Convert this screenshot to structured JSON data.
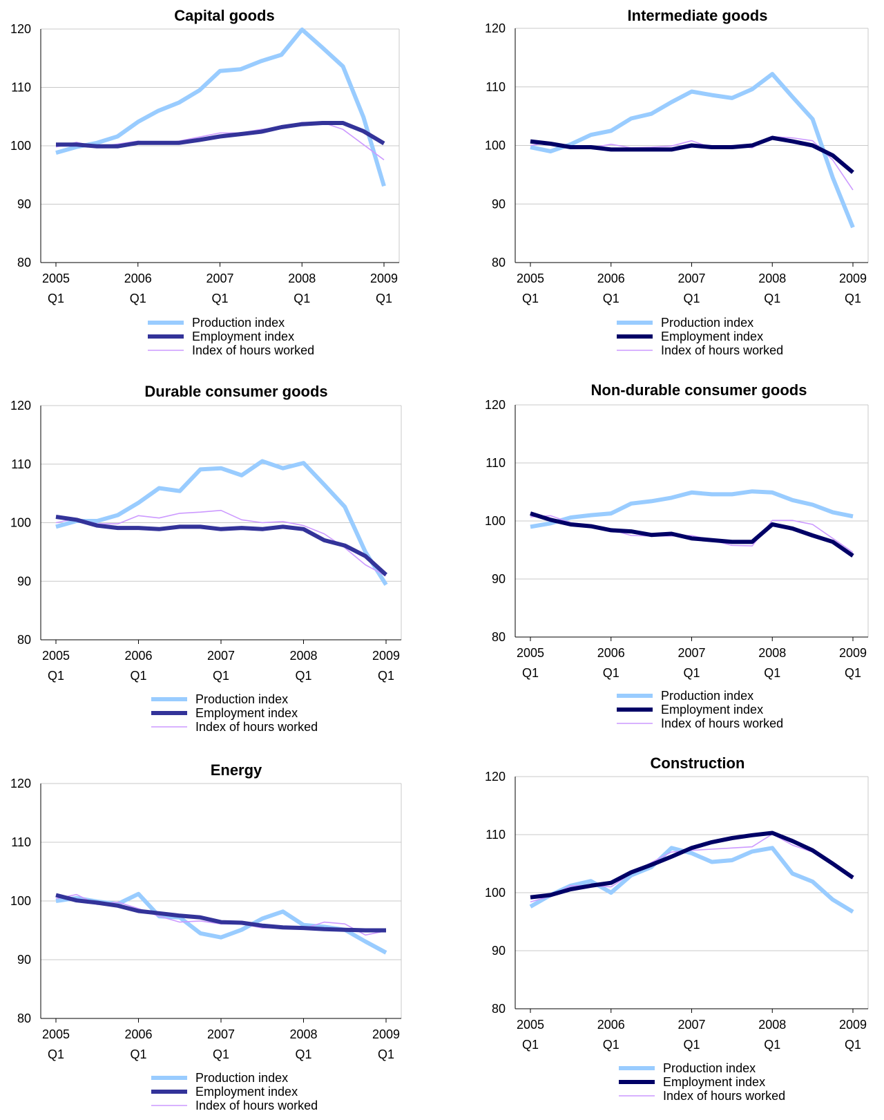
{
  "chart_data": [
    {
      "type": "line",
      "title": "Capital goods",
      "ylim": [
        80,
        120
      ],
      "yticks": [
        "80",
        "90",
        "100",
        "110",
        "120"
      ],
      "xticks": [
        {
          "year": "2005",
          "q": "Q1"
        },
        {
          "year": "2006",
          "q": "Q1"
        },
        {
          "year": "2007",
          "q": "Q1"
        },
        {
          "year": "2008",
          "q": "Q1"
        },
        {
          "year": "2009",
          "q": "Q1"
        }
      ],
      "x": [
        "2005Q1",
        "2005Q2",
        "2005Q3",
        "2005Q4",
        "2006Q1",
        "2006Q2",
        "2006Q3",
        "2006Q4",
        "2007Q1",
        "2007Q2",
        "2007Q3",
        "2007Q4",
        "2008Q1",
        "2008Q2",
        "2008Q3",
        "2008Q4",
        "2009Q1"
      ],
      "series": [
        {
          "name": "Production index",
          "color": "#99ccff",
          "values": [
            98.8,
            99.8,
            100.5,
            101.6,
            104.1,
            106.0,
            107.4,
            109.5,
            112.8,
            113.1,
            114.5,
            115.6,
            119.9,
            116.8,
            113.6,
            104.9,
            93.1
          ]
        },
        {
          "name": "Employment index",
          "color": "#333399",
          "values": [
            100.2,
            100.2,
            99.9,
            99.9,
            100.5,
            100.5,
            100.5,
            101.0,
            101.6,
            102.0,
            102.4,
            103.2,
            103.7,
            103.9,
            103.9,
            102.5,
            100.4
          ]
        },
        {
          "name": "Index of hours worked",
          "color": "#cc99ff",
          "values": [
            99.8,
            100.6,
            99.8,
            100.3,
            100.8,
            100.3,
            100.8,
            101.5,
            102.2,
            102.2,
            102.8,
            103.1,
            104.0,
            104.0,
            102.8,
            100.2,
            97.6
          ]
        }
      ]
    },
    {
      "type": "line",
      "title": "Intermediate goods",
      "ylim": [
        80,
        120
      ],
      "yticks": [
        "80",
        "90",
        "100",
        "110",
        "120"
      ],
      "xticks": [
        {
          "year": "2005",
          "q": "Q1"
        },
        {
          "year": "2006",
          "q": "Q1"
        },
        {
          "year": "2007",
          "q": "Q1"
        },
        {
          "year": "2008",
          "q": "Q1"
        },
        {
          "year": "2009",
          "q": "Q1"
        }
      ],
      "x": [
        "2005Q1",
        "2005Q2",
        "2005Q3",
        "2005Q4",
        "2006Q1",
        "2006Q2",
        "2006Q3",
        "2006Q4",
        "2007Q1",
        "2007Q2",
        "2007Q3",
        "2007Q4",
        "2008Q1",
        "2008Q2",
        "2008Q3",
        "2008Q4",
        "2009Q1"
      ],
      "series": [
        {
          "name": "Production index",
          "color": "#99ccff",
          "values": [
            99.7,
            99.0,
            100.2,
            101.8,
            102.5,
            104.6,
            105.4,
            107.4,
            109.2,
            108.6,
            108.1,
            109.6,
            112.2,
            108.3,
            104.5,
            94.5,
            86.0
          ]
        },
        {
          "name": "Employment index",
          "color": "#000066",
          "values": [
            100.7,
            100.3,
            99.7,
            99.7,
            99.3,
            99.3,
            99.3,
            99.3,
            100.0,
            99.7,
            99.7,
            100.0,
            101.3,
            100.7,
            100.0,
            98.3,
            95.4
          ]
        },
        {
          "name": "Index of hours worked",
          "color": "#cc99ff",
          "values": [
            100.0,
            100.5,
            99.7,
            99.6,
            100.2,
            99.6,
            99.7,
            99.9,
            100.8,
            99.6,
            100.0,
            99.6,
            101.5,
            101.3,
            100.8,
            97.5,
            92.4
          ]
        }
      ]
    },
    {
      "type": "line",
      "title": "Durable consumer goods",
      "ylim": [
        80,
        120
      ],
      "yticks": [
        "80",
        "90",
        "100",
        "110",
        "120"
      ],
      "xticks": [
        {
          "year": "2005",
          "q": "Q1"
        },
        {
          "year": "2006",
          "q": "Q1"
        },
        {
          "year": "2007",
          "q": "Q1"
        },
        {
          "year": "2008",
          "q": "Q1"
        },
        {
          "year": "2009",
          "q": "Q1"
        }
      ],
      "x": [
        "2005Q1",
        "2005Q2",
        "2005Q3",
        "2005Q4",
        "2006Q1",
        "2006Q2",
        "2006Q3",
        "2006Q4",
        "2007Q1",
        "2007Q2",
        "2007Q3",
        "2007Q4",
        "2008Q1",
        "2008Q2",
        "2008Q3",
        "2008Q4",
        "2009Q1"
      ],
      "series": [
        {
          "name": "Production index",
          "color": "#99ccff",
          "values": [
            99.3,
            100.3,
            100.3,
            101.3,
            103.4,
            105.9,
            105.4,
            109.1,
            109.3,
            108.1,
            110.5,
            109.3,
            110.2,
            106.5,
            102.7,
            95.0,
            89.4
          ]
        },
        {
          "name": "Employment index",
          "color": "#333399",
          "values": [
            101.0,
            100.5,
            99.5,
            99.1,
            99.1,
            98.9,
            99.3,
            99.3,
            98.9,
            99.1,
            98.9,
            99.3,
            98.9,
            97.0,
            96.1,
            94.3,
            91.1
          ]
        },
        {
          "name": "Index of hours worked",
          "color": "#cc99ff",
          "values": [
            100.0,
            100.7,
            99.8,
            99.8,
            101.2,
            100.8,
            101.6,
            101.8,
            102.1,
            100.5,
            100.0,
            100.2,
            99.5,
            98.1,
            95.7,
            92.8,
            90.9
          ]
        }
      ]
    },
    {
      "type": "line",
      "title": "Non-durable consumer goods",
      "ylim": [
        80,
        120
      ],
      "yticks": [
        "80",
        "90",
        "100",
        "110",
        "120"
      ],
      "xticks": [
        {
          "year": "2005",
          "q": "Q1"
        },
        {
          "year": "2006",
          "q": "Q1"
        },
        {
          "year": "2007",
          "q": "Q1"
        },
        {
          "year": "2008",
          "q": "Q1"
        },
        {
          "year": "2009",
          "q": "Q1"
        }
      ],
      "x": [
        "2005Q1",
        "2005Q2",
        "2005Q3",
        "2005Q4",
        "2006Q1",
        "2006Q2",
        "2006Q3",
        "2006Q4",
        "2007Q1",
        "2007Q2",
        "2007Q3",
        "2007Q4",
        "2008Q1",
        "2008Q2",
        "2008Q3",
        "2008Q4",
        "2009Q1"
      ],
      "series": [
        {
          "name": "Production index",
          "color": "#99ccff",
          "values": [
            99.0,
            99.6,
            100.6,
            101.0,
            101.3,
            103.0,
            103.4,
            104.0,
            104.9,
            104.6,
            104.6,
            105.1,
            104.9,
            103.6,
            102.8,
            101.5,
            100.8
          ]
        },
        {
          "name": "Employment index",
          "color": "#000066",
          "values": [
            101.3,
            100.2,
            99.4,
            99.1,
            98.4,
            98.2,
            97.6,
            97.8,
            97.0,
            96.7,
            96.4,
            96.4,
            99.4,
            98.7,
            97.5,
            96.4,
            94.0
          ]
        },
        {
          "name": "Index of hours worked",
          "color": "#cc99ff",
          "values": [
            100.7,
            100.9,
            99.7,
            99.3,
            98.5,
            97.5,
            97.4,
            97.4,
            97.5,
            96.7,
            95.8,
            95.7,
            100.1,
            100.1,
            99.4,
            97.0,
            94.6
          ]
        }
      ]
    },
    {
      "type": "line",
      "title": "Energy",
      "ylim": [
        80,
        120
      ],
      "yticks": [
        "80",
        "90",
        "100",
        "110",
        "120"
      ],
      "xticks": [
        {
          "year": "2005",
          "q": "Q1"
        },
        {
          "year": "2006",
          "q": "Q1"
        },
        {
          "year": "2007",
          "q": "Q1"
        },
        {
          "year": "2008",
          "q": "Q1"
        },
        {
          "year": "2009",
          "q": "Q1"
        }
      ],
      "x": [
        "2005Q1",
        "2005Q2",
        "2005Q3",
        "2005Q4",
        "2006Q1",
        "2006Q2",
        "2006Q3",
        "2006Q4",
        "2007Q1",
        "2007Q2",
        "2007Q3",
        "2007Q4",
        "2008Q1",
        "2008Q2",
        "2008Q3",
        "2008Q4",
        "2009Q1"
      ],
      "series": [
        {
          "name": "Production index",
          "color": "#99ccff",
          "values": [
            100.0,
            100.5,
            99.9,
            99.5,
            101.2,
            97.4,
            97.2,
            94.5,
            93.8,
            95.1,
            97.0,
            98.2,
            95.9,
            95.6,
            95.1,
            93.1,
            91.2
          ]
        },
        {
          "name": "Employment index",
          "color": "#333399",
          "values": [
            101.0,
            100.1,
            99.7,
            99.2,
            98.3,
            97.9,
            97.5,
            97.2,
            96.4,
            96.3,
            95.8,
            95.5,
            95.4,
            95.2,
            95.1,
            95.0,
            95.0
          ]
        },
        {
          "name": "Index of hours worked",
          "color": "#cc99ff",
          "values": [
            100.4,
            101.1,
            99.4,
            99.8,
            98.7,
            97.4,
            96.4,
            96.6,
            96.1,
            96.1,
            95.4,
            95.5,
            95.3,
            96.4,
            96.1,
            94.2,
            94.9
          ]
        }
      ]
    },
    {
      "type": "line",
      "title": "Construction",
      "ylim": [
        80,
        120
      ],
      "yticks": [
        "80",
        "90",
        "100",
        "110",
        "120"
      ],
      "xticks": [
        {
          "year": "2005",
          "q": "Q1"
        },
        {
          "year": "2006",
          "q": "Q1"
        },
        {
          "year": "2007",
          "q": "Q1"
        },
        {
          "year": "2008",
          "q": "Q1"
        },
        {
          "year": "2009",
          "q": "Q1"
        }
      ],
      "x": [
        "2005Q1",
        "2005Q2",
        "2005Q3",
        "2005Q4",
        "2006Q1",
        "2006Q2",
        "2006Q3",
        "2006Q4",
        "2007Q1",
        "2007Q2",
        "2007Q3",
        "2007Q4",
        "2008Q1",
        "2008Q2",
        "2008Q3",
        "2008Q4",
        "2009Q1"
      ],
      "series": [
        {
          "name": "Production index",
          "color": "#99ccff",
          "values": [
            97.6,
            99.6,
            101.2,
            102.0,
            100.0,
            103.0,
            104.4,
            107.7,
            106.8,
            105.3,
            105.6,
            107.1,
            107.7,
            103.3,
            101.9,
            98.8,
            96.7
          ]
        },
        {
          "name": "Employment index",
          "color": "#000066",
          "values": [
            99.2,
            99.6,
            100.6,
            101.2,
            101.7,
            103.5,
            104.8,
            106.2,
            107.7,
            108.7,
            109.4,
            109.9,
            110.3,
            108.9,
            107.3,
            105.0,
            102.6
          ]
        },
        {
          "name": "Index of hours worked",
          "color": "#cc99ff",
          "values": [
            98.4,
            99.4,
            101.2,
            101.2,
            101.0,
            103.3,
            105.2,
            107.0,
            107.3,
            107.5,
            107.7,
            107.9,
            110.1,
            108.2,
            107.0,
            105.0,
            102.4
          ]
        }
      ]
    }
  ]
}
